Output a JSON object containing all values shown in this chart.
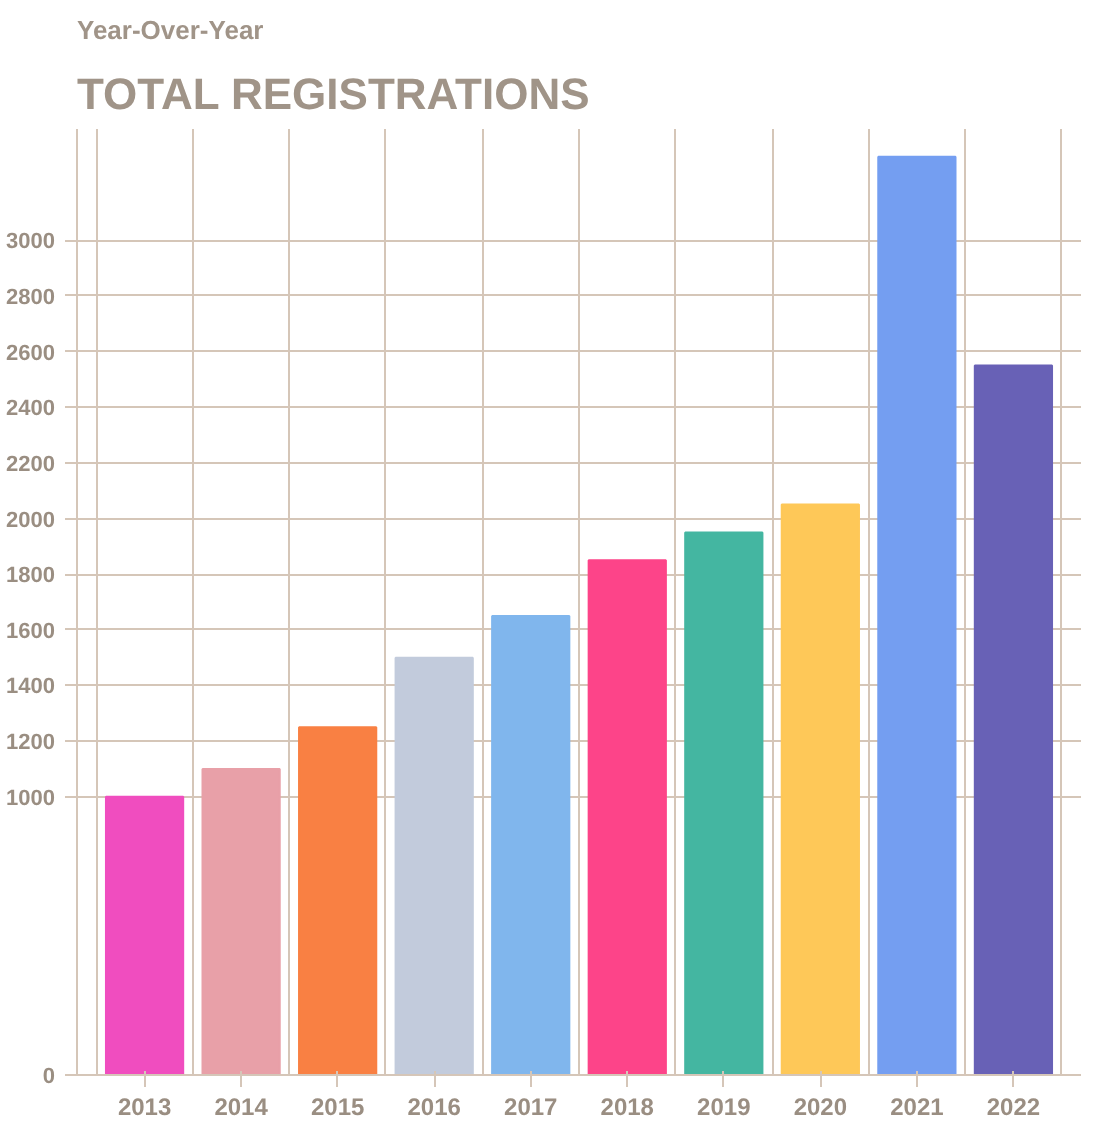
{
  "chart_data": {
    "type": "bar",
    "subtitle": "Year-Over-Year",
    "title": "TOTAL REGISTRATIONS",
    "categories": [
      "2013",
      "2014",
      "2015",
      "2016",
      "2017",
      "2018",
      "2019",
      "2020",
      "2021",
      "2022"
    ],
    "values": [
      1000,
      1100,
      1250,
      1500,
      1650,
      1850,
      1950,
      2050,
      3300,
      2550
    ],
    "colors": [
      "#f04dbf",
      "#e8a0a8",
      "#f98043",
      "#c2cbdc",
      "#80b6ed",
      "#fd4489",
      "#44b6a1",
      "#fec858",
      "#749ef1",
      "#6861b6"
    ],
    "ylim": [
      0,
      3400
    ],
    "yticks": [
      0,
      1000,
      1200,
      1400,
      1600,
      1800,
      2000,
      2200,
      2400,
      2600,
      2800,
      3000
    ],
    "grid": true
  }
}
